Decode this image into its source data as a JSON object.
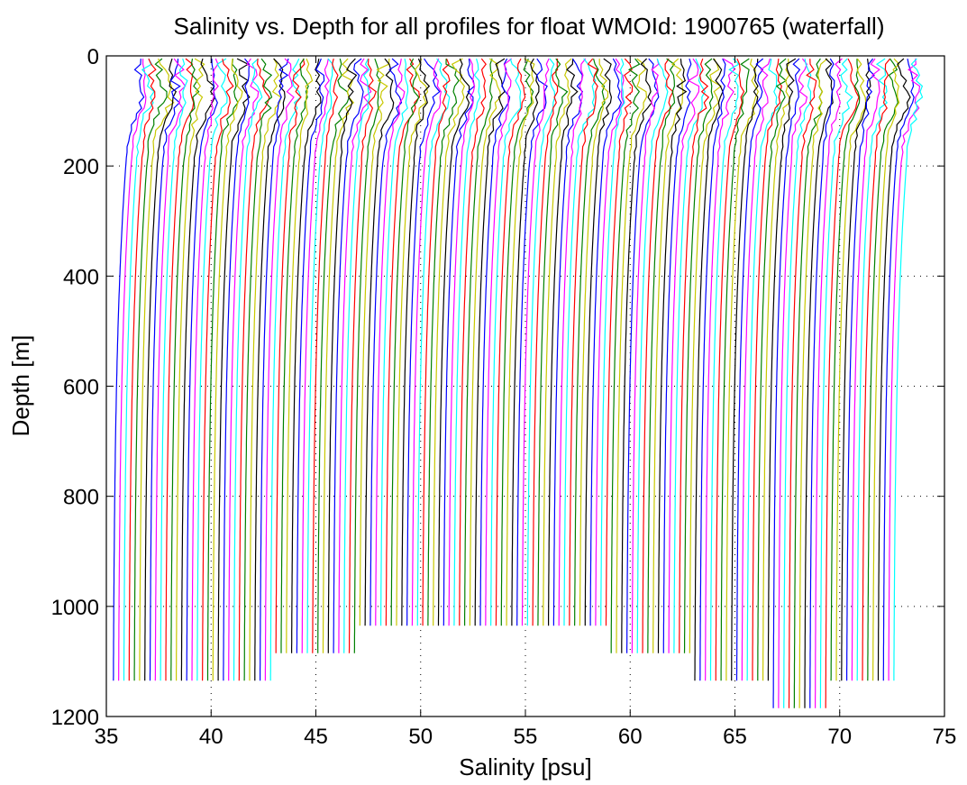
{
  "chart_data": {
    "type": "line",
    "title": "Salinity vs. Depth for all profiles for float WMOId: 1900765 (waterfall)",
    "xlabel": "Salinity [psu]",
    "ylabel": "Depth [m]",
    "xlim": [
      35,
      75
    ],
    "ylim": [
      0,
      1200
    ],
    "y_reversed": true,
    "grid": "dotted",
    "xticks": [
      35,
      40,
      45,
      50,
      55,
      60,
      65,
      70,
      75
    ],
    "yticks": [
      0,
      200,
      400,
      600,
      800,
      1000,
      1200
    ],
    "series_colors": [
      "#0000ff",
      "#ff00ff",
      "#00ffff",
      "#ff0000",
      "#008000",
      "#c8c800",
      "#000000"
    ],
    "profile_count": 150,
    "first_profile_deep_salinity": 35.3,
    "profile_offset_step": 0.25,
    "profiles": [
      {
        "offset_index": 0,
        "max_depth": 1140
      },
      {
        "offset_index": 20,
        "max_depth": 1140
      },
      {
        "offset_index": 40,
        "max_depth": 1090
      },
      {
        "offset_index": 46,
        "max_depth": 1090
      },
      {
        "offset_index": 47,
        "max_depth": 1040
      },
      {
        "offset_index": 94,
        "max_depth": 1040
      },
      {
        "offset_index": 95,
        "max_depth": 1090
      },
      {
        "offset_index": 110,
        "max_depth": 1090
      },
      {
        "offset_index": 111,
        "max_depth": 1140
      },
      {
        "offset_index": 125,
        "max_depth": 1140
      },
      {
        "offset_index": 126,
        "max_depth": 1185
      },
      {
        "offset_index": 136,
        "max_depth": 1185
      },
      {
        "offset_index": 137,
        "max_depth": 1140
      },
      {
        "offset_index": 149,
        "max_depth": 1140
      }
    ]
  }
}
